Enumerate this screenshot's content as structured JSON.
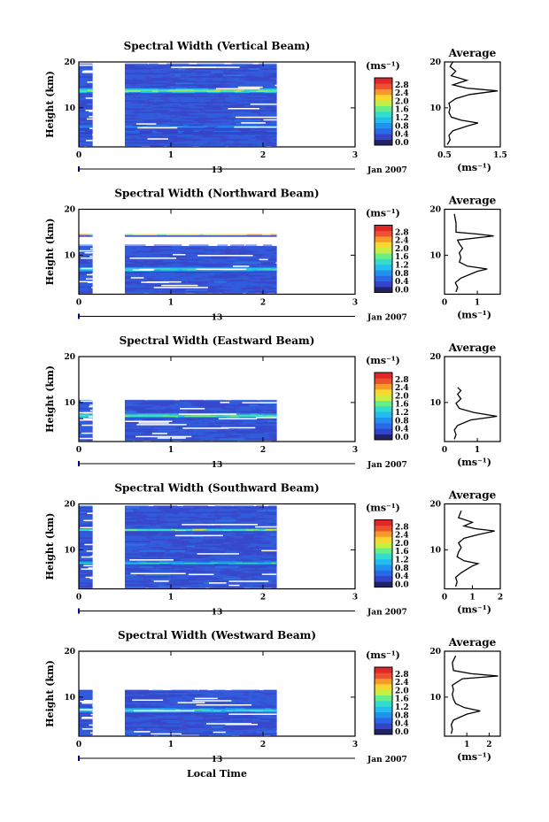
{
  "figure": {
    "xlabel": "Local Time",
    "date_day": "13",
    "date_month_year": "Jan 2007",
    "unit_label": "(ms⁻¹)",
    "avg_title": "Average"
  },
  "colorbar": {
    "ticks": [
      "2.8",
      "2.4",
      "2.0",
      "1.6",
      "1.2",
      "0.8",
      "0.4",
      "0.0"
    ],
    "colors": [
      "#222266",
      "#3344c8",
      "#2a68e6",
      "#2290ee",
      "#22bcee",
      "#33dccc",
      "#66ee88",
      "#c8ee44",
      "#f8d830",
      "#f89a28",
      "#ee5030",
      "#e02828"
    ]
  },
  "chart_data": [
    {
      "type": "heatmap",
      "title": "Spectral Width (Vertical Beam)",
      "ylabel": "Height (km)",
      "xlabel": "Local Time",
      "x_ticks": [
        "0",
        "1",
        "2",
        "3"
      ],
      "y_ticks": [
        "20",
        "10"
      ],
      "xlim": [
        0,
        3
      ],
      "ylim": [
        1.5,
        20
      ],
      "data_x_range": [
        [
          0,
          0.15
        ],
        [
          0.5,
          2.15
        ]
      ],
      "layers": [
        {
          "height_km": 13.6,
          "width": 1.3,
          "width_ms": 2.2
        },
        {
          "height_km": 5.8,
          "width": 1.0,
          "width_ms": 0.9
        },
        {
          "height_km": 4.6,
          "width": 0.8,
          "width_ms": 0.6
        }
      ],
      "colorbar_label": "(ms⁻¹)",
      "colorbar_range": [
        0.0,
        3.0
      ],
      "average_profile": {
        "title": "Average",
        "xlabel": "(ms⁻¹)",
        "x_ticks": [
          "0.5",
          "1.5"
        ],
        "xlim": [
          0.5,
          1.5
        ],
        "y_ticks": [
          "20",
          "10"
        ],
        "ylim": [
          1.5,
          20
        ],
        "points": [
          [
            0.55,
            2
          ],
          [
            0.6,
            3
          ],
          [
            0.58,
            4
          ],
          [
            0.65,
            5
          ],
          [
            0.9,
            6
          ],
          [
            1.1,
            6.7
          ],
          [
            0.8,
            7.3
          ],
          [
            0.62,
            8
          ],
          [
            0.58,
            9
          ],
          [
            0.6,
            10
          ],
          [
            0.58,
            11
          ],
          [
            0.7,
            12
          ],
          [
            0.95,
            12.9
          ],
          [
            1.45,
            13.7
          ],
          [
            0.9,
            14.3
          ],
          [
            0.65,
            15
          ],
          [
            0.9,
            16
          ],
          [
            0.62,
            17
          ],
          [
            0.7,
            18
          ],
          [
            0.6,
            19
          ],
          [
            0.65,
            20
          ]
        ]
      }
    },
    {
      "type": "heatmap",
      "title": "Spectral Width (Northward Beam)",
      "ylabel": "Height (km)",
      "xlabel": "Local Time",
      "x_ticks": [
        "0",
        "1",
        "2",
        "3"
      ],
      "y_ticks": [
        "20",
        "10"
      ],
      "xlim": [
        0,
        3
      ],
      "ylim": [
        1.5,
        20
      ],
      "data_x_range": [
        [
          0,
          0.15
        ],
        [
          0.5,
          2.15
        ]
      ],
      "data_top_km": 12,
      "layers": [
        {
          "height_km": 14.3,
          "width": 0.6,
          "width_ms": 2.2
        },
        {
          "height_km": 6.8,
          "width": 1.2,
          "width_ms": 1.8
        }
      ],
      "colorbar_label": "(ms⁻¹)",
      "colorbar_range": [
        0.0,
        3.0
      ],
      "average_profile": {
        "title": "Average",
        "xlabel": "(ms⁻¹)",
        "x_ticks": [
          "0",
          "1"
        ],
        "xlim": [
          0,
          1.7
        ],
        "y_ticks": [
          "20",
          "10"
        ],
        "ylim": [
          1.5,
          20
        ],
        "points": [
          [
            0.35,
            2
          ],
          [
            0.4,
            3
          ],
          [
            0.33,
            4
          ],
          [
            0.5,
            5
          ],
          [
            1.0,
            6.5
          ],
          [
            1.3,
            7
          ],
          [
            0.7,
            7.6
          ],
          [
            0.45,
            8.5
          ],
          [
            0.5,
            9.5
          ],
          [
            0.45,
            10.5
          ],
          [
            0.55,
            11.5
          ],
          [
            0.45,
            12.5
          ],
          [
            0.4,
            13.3
          ],
          [
            1.5,
            14.2
          ],
          [
            1.0,
            14.6
          ],
          [
            0.35,
            15
          ],
          [
            0.35,
            17
          ],
          [
            0.3,
            19
          ]
        ]
      }
    },
    {
      "type": "heatmap",
      "title": "Spectral Width (Eastward Beam)",
      "ylabel": "Height (km)",
      "xlabel": "Local Time",
      "x_ticks": [
        "0",
        "1",
        "2",
        "3"
      ],
      "y_ticks": [
        "20",
        "10"
      ],
      "xlim": [
        0,
        3
      ],
      "ylim": [
        1.5,
        20
      ],
      "data_x_range": [
        [
          0,
          0.15
        ],
        [
          0.5,
          2.15
        ]
      ],
      "data_top_km": 10.5,
      "layers": [
        {
          "height_km": 7.0,
          "width": 1.2,
          "width_ms": 1.9
        }
      ],
      "colorbar_label": "(ms⁻¹)",
      "colorbar_range": [
        0.0,
        3.0
      ],
      "average_profile": {
        "title": "Average",
        "xlabel": "(ms⁻¹)",
        "x_ticks": [
          "0",
          "1"
        ],
        "xlim": [
          0,
          1.7
        ],
        "y_ticks": [
          "20",
          "10"
        ],
        "ylim": [
          1.5,
          20
        ],
        "points": [
          [
            0.3,
            2
          ],
          [
            0.35,
            3
          ],
          [
            0.3,
            4
          ],
          [
            0.4,
            5
          ],
          [
            0.8,
            6.2
          ],
          [
            1.6,
            7
          ],
          [
            0.9,
            7.8
          ],
          [
            0.45,
            8.7
          ],
          [
            0.35,
            9.8
          ],
          [
            0.5,
            10.8
          ],
          [
            0.4,
            11.8
          ],
          [
            0.5,
            12.6
          ],
          [
            0.4,
            13.3
          ]
        ]
      }
    },
    {
      "type": "heatmap",
      "title": "Spectral Width (Southward Beam)",
      "ylabel": "Height (km)",
      "xlabel": "Local Time",
      "x_ticks": [
        "0",
        "1",
        "2",
        "3"
      ],
      "y_ticks": [
        "20",
        "10"
      ],
      "xlim": [
        0,
        3
      ],
      "ylim": [
        1.5,
        20
      ],
      "data_x_range": [
        [
          0,
          0.15
        ],
        [
          0.5,
          2.15
        ]
      ],
      "layers": [
        {
          "height_km": 14.2,
          "width": 0.7,
          "width_ms": 2.3
        },
        {
          "height_km": 7.0,
          "width": 1.0,
          "width_ms": 1.4
        }
      ],
      "colorbar_label": "(ms⁻¹)",
      "colorbar_range": [
        0.0,
        3.0
      ],
      "average_profile": {
        "title": "Average",
        "xlabel": "(ms⁻¹)",
        "x_ticks": [
          "0",
          "1",
          "2"
        ],
        "xlim": [
          0,
          2
        ],
        "y_ticks": [
          "20",
          "10"
        ],
        "ylim": [
          1.5,
          20
        ],
        "points": [
          [
            0.4,
            2
          ],
          [
            0.45,
            3
          ],
          [
            0.4,
            4
          ],
          [
            0.6,
            5
          ],
          [
            1.0,
            6.5
          ],
          [
            1.2,
            7
          ],
          [
            0.7,
            7.6
          ],
          [
            0.45,
            8.5
          ],
          [
            0.5,
            9.5
          ],
          [
            0.6,
            10.5
          ],
          [
            0.5,
            11.5
          ],
          [
            0.7,
            12.5
          ],
          [
            1.2,
            13.3
          ],
          [
            1.8,
            14.1
          ],
          [
            1.1,
            14.6
          ],
          [
            0.7,
            15.2
          ],
          [
            1.0,
            16
          ],
          [
            0.5,
            17
          ],
          [
            0.6,
            18.5
          ]
        ]
      }
    },
    {
      "type": "heatmap",
      "title": "Spectral Width (Westward Beam)",
      "ylabel": "Height (km)",
      "xlabel": "Local Time",
      "x_ticks": [
        "0",
        "1",
        "2",
        "3"
      ],
      "y_ticks": [
        "20",
        "10"
      ],
      "xlim": [
        0,
        3
      ],
      "ylim": [
        1.5,
        20
      ],
      "data_x_range": [
        [
          0,
          0.15
        ],
        [
          0.5,
          2.15
        ]
      ],
      "data_top_km": 11.5,
      "layers": [
        {
          "height_km": 7.0,
          "width": 1.3,
          "width_ms": 1.7
        }
      ],
      "colorbar_label": "(ms⁻¹)",
      "colorbar_range": [
        0.0,
        3.0
      ],
      "average_profile": {
        "title": "Average",
        "xlabel": "(ms⁻¹)",
        "x_ticks": [
          "1",
          "2"
        ],
        "xlim": [
          0,
          2.5
        ],
        "y_ticks": [
          "20",
          "10"
        ],
        "ylim": [
          1.5,
          20
        ],
        "points": [
          [
            0.3,
            2
          ],
          [
            0.35,
            3
          ],
          [
            0.3,
            4
          ],
          [
            0.4,
            5
          ],
          [
            1.0,
            6.3
          ],
          [
            1.6,
            7
          ],
          [
            0.9,
            7.7
          ],
          [
            0.5,
            8.6
          ],
          [
            0.4,
            9.6
          ],
          [
            0.35,
            10.6
          ],
          [
            0.4,
            11.6
          ],
          [
            0.35,
            12.6
          ],
          [
            0.8,
            14
          ],
          [
            2.4,
            14.6
          ],
          [
            1.2,
            15.1
          ],
          [
            0.4,
            15.8
          ],
          [
            0.35,
            17.5
          ],
          [
            0.5,
            19
          ]
        ]
      }
    }
  ]
}
